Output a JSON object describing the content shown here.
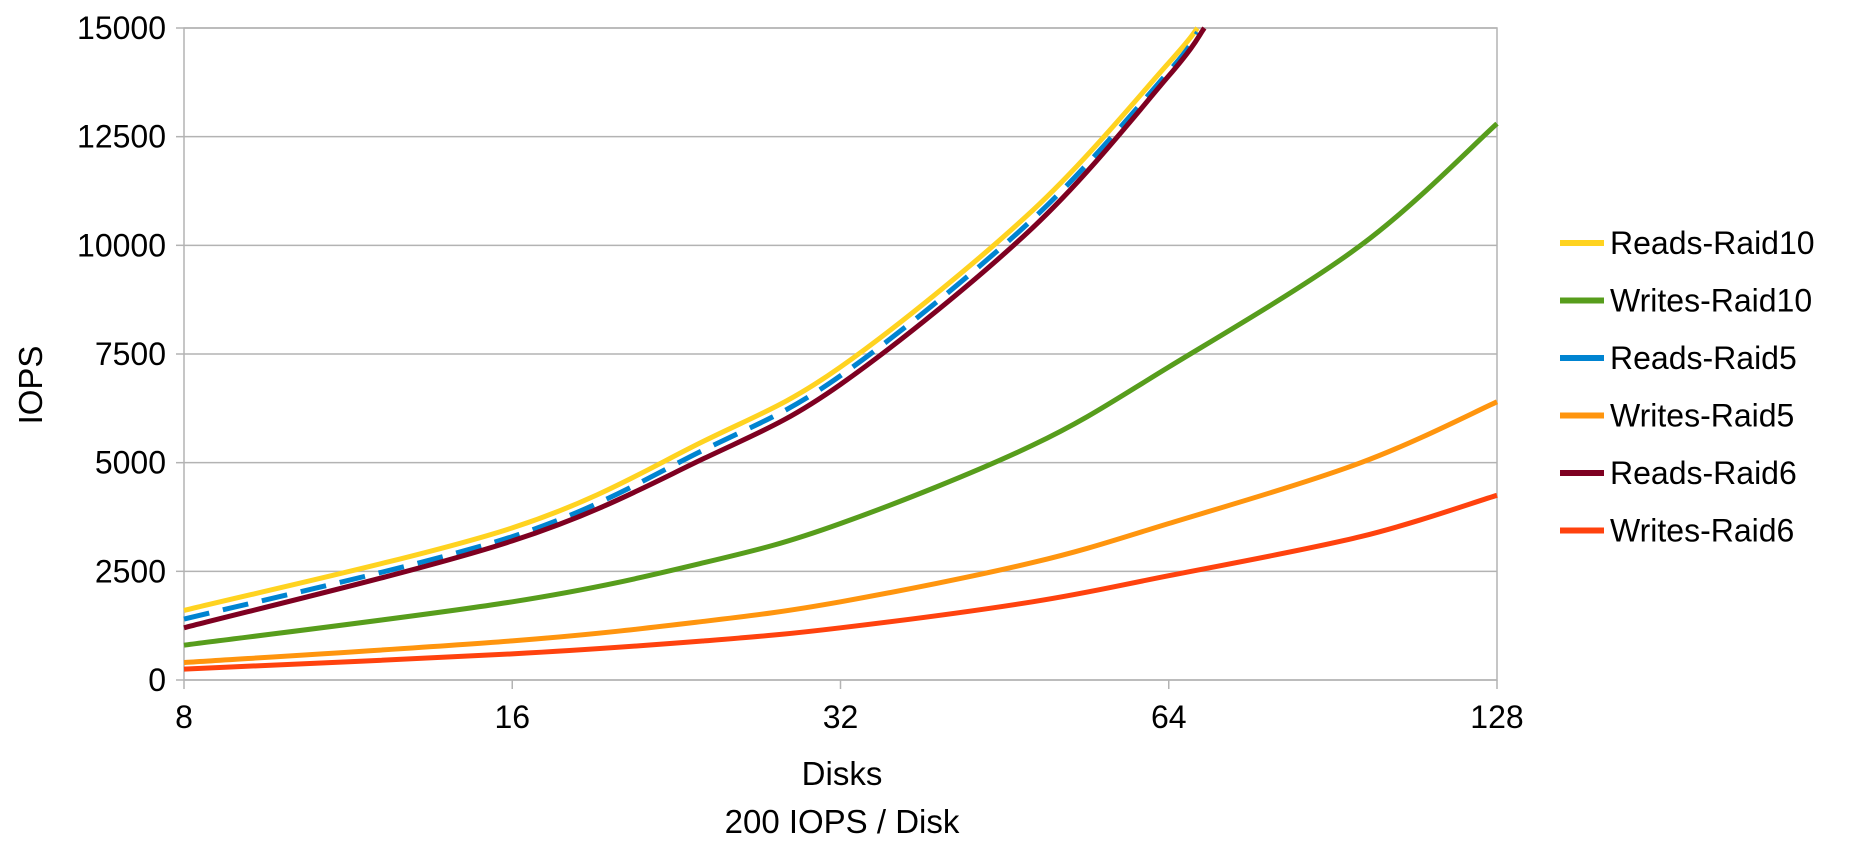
{
  "chart_data": {
    "type": "line",
    "title": "",
    "xlabel": "Disks",
    "xsublabel": "200 IOPS / Disk",
    "ylabel": "IOPS",
    "x_scale": "log2",
    "xlim": [
      8,
      128
    ],
    "ylim": [
      0,
      15000
    ],
    "x_ticks": [
      8,
      16,
      32,
      64,
      128
    ],
    "x_tick_labels": [
      "8",
      "16",
      "32",
      "64",
      "128"
    ],
    "y_ticks": [
      0,
      2500,
      5000,
      7500,
      10000,
      12500,
      15000
    ],
    "y_tick_labels": [
      "0",
      "2500",
      "5000",
      "7500",
      "10000",
      "12500",
      "15000"
    ],
    "grid": "horizontal",
    "legend_position": "right",
    "series": [
      {
        "name": "Reads-Raid10",
        "color": "#ffd320",
        "dashed": false,
        "x": [
          8,
          16,
          24,
          32,
          48,
          64,
          68
        ],
        "y": [
          1600,
          3500,
          5500,
          7200,
          10800,
          14200,
          15000
        ]
      },
      {
        "name": "Writes-Raid10",
        "color": "#579d1c",
        "dashed": false,
        "x": [
          8,
          16,
          24,
          32,
          48,
          64,
          96,
          128
        ],
        "y": [
          800,
          1800,
          2700,
          3600,
          5400,
          7200,
          10000,
          12800
        ]
      },
      {
        "name": "Reads-Raid5",
        "color": "#0084d1",
        "dashed": true,
        "x": [
          8,
          16,
          24,
          32,
          48,
          64,
          68
        ],
        "y": [
          1400,
          3300,
          5300,
          7000,
          10600,
          14000,
          14900
        ]
      },
      {
        "name": "Writes-Raid5",
        "color": "#ff950e",
        "dashed": false,
        "x": [
          8,
          16,
          24,
          32,
          48,
          64,
          96,
          128
        ],
        "y": [
          400,
          900,
          1350,
          1800,
          2700,
          3600,
          5000,
          6400
        ]
      },
      {
        "name": "Reads-Raid6",
        "color": "#7e0021",
        "dashed": false,
        "x": [
          8,
          16,
          24,
          32,
          48,
          64,
          69
        ],
        "y": [
          1200,
          3200,
          5100,
          6800,
          10400,
          13900,
          15000
        ]
      },
      {
        "name": "Writes-Raid6",
        "color": "#ff420e",
        "dashed": false,
        "x": [
          8,
          16,
          24,
          32,
          48,
          64,
          96,
          128
        ],
        "y": [
          250,
          600,
          900,
          1200,
          1800,
          2400,
          3300,
          4250
        ]
      }
    ]
  }
}
